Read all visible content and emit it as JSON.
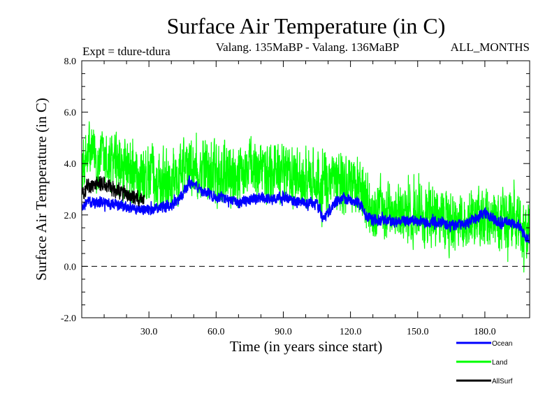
{
  "chart_data": {
    "type": "line",
    "title": "Surface Air Temperature (in C)",
    "subtitle_left": "Expt = tdure-tdura",
    "subtitle_center": "Valang.  135MaBP - Valang.  136MaBP",
    "subtitle_right": "ALL_MONTHS",
    "xlabel": "Time (in years since start)",
    "ylabel": "Surface Air Temperature (in C)",
    "xlim": [
      0,
      200
    ],
    "ylim": [
      -2.0,
      8.0
    ],
    "xticks": [
      30,
      60,
      90,
      120,
      150,
      180
    ],
    "xtick_labels": [
      "30.0",
      "60.0",
      "90.0",
      "120.0",
      "150.0",
      "180.0"
    ],
    "yticks": [
      -2,
      0,
      2,
      4,
      6,
      8
    ],
    "ytick_labels": [
      "-2.0",
      "0.0",
      "2.0",
      "4.0",
      "6.0",
      "8.0"
    ],
    "reference_line": {
      "y": 0.0,
      "style": "dashed"
    },
    "monthly_samples_per_year": 12,
    "legend_position": "bottom-right",
    "series": [
      {
        "name": "Land",
        "color": "#00ff00",
        "x": [
          0,
          3,
          6,
          10,
          15,
          20,
          25,
          30,
          35,
          40,
          45,
          48,
          55,
          60,
          65,
          70,
          75,
          80,
          85,
          90,
          95,
          100,
          105,
          110,
          115,
          120,
          125,
          127,
          130,
          135,
          140,
          145,
          150,
          155,
          160,
          165,
          170,
          175,
          180,
          185,
          190,
          195,
          200
        ],
        "y": [
          3.6,
          4.5,
          4.3,
          4.0,
          3.9,
          3.6,
          3.5,
          3.5,
          3.3,
          3.6,
          3.8,
          4.0,
          3.7,
          3.5,
          3.5,
          3.6,
          3.8,
          3.7,
          3.6,
          3.6,
          3.5,
          3.5,
          3.5,
          3.3,
          3.2,
          3.3,
          3.0,
          2.3,
          2.1,
          2.2,
          2.1,
          2.0,
          2.0,
          2.0,
          1.9,
          1.7,
          1.8,
          1.8,
          1.8,
          1.8,
          1.8,
          1.7,
          1.4
        ],
        "noise_amplitude": 1.1
      },
      {
        "name": "Ocean",
        "color": "#0000ff",
        "x": [
          0,
          3,
          6,
          10,
          15,
          20,
          25,
          30,
          35,
          40,
          45,
          48,
          55,
          60,
          65,
          70,
          75,
          80,
          85,
          90,
          95,
          100,
          105,
          108,
          112,
          115,
          120,
          125,
          127,
          130,
          135,
          140,
          145,
          150,
          155,
          160,
          165,
          170,
          175,
          180,
          185,
          190,
          195,
          198,
          200
        ],
        "y": [
          2.3,
          2.5,
          2.5,
          2.5,
          2.4,
          2.3,
          2.2,
          2.2,
          2.3,
          2.4,
          2.8,
          3.3,
          2.9,
          2.7,
          2.6,
          2.5,
          2.6,
          2.7,
          2.6,
          2.7,
          2.5,
          2.5,
          2.4,
          1.8,
          2.3,
          2.6,
          2.6,
          2.4,
          2.0,
          1.8,
          1.8,
          1.7,
          1.8,
          1.8,
          1.7,
          1.7,
          1.6,
          1.6,
          1.8,
          2.1,
          1.8,
          1.7,
          1.6,
          1.2,
          1.1
        ],
        "noise_amplitude": 0.2
      },
      {
        "name": "AllSurf",
        "color": "#000000",
        "x": [
          0,
          2,
          5,
          8,
          11,
          14,
          17,
          20,
          23,
          26,
          28
        ],
        "y": [
          2.8,
          3.1,
          3.2,
          3.3,
          3.2,
          3.0,
          2.9,
          2.8,
          2.7,
          2.6,
          2.6
        ],
        "noise_amplitude": 0.28
      }
    ]
  }
}
